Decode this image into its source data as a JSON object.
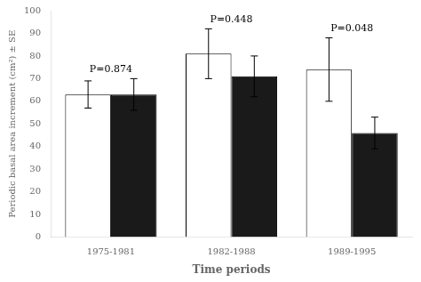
{
  "chart_data": {
    "type": "bar",
    "categories": [
      "1975-1981",
      "1982-1988",
      "1989-1995"
    ],
    "series": [
      {
        "color": "#ffffff",
        "values": [
          63,
          81,
          74
        ],
        "errors": [
          6,
          11,
          14
        ]
      },
      {
        "color": "#1a1a1a",
        "values": [
          63,
          71,
          46
        ],
        "errors": [
          7,
          9,
          7
        ]
      }
    ],
    "annotations": [
      {
        "text": "P=0.874",
        "category": "1975-1981"
      },
      {
        "text": "P=0.448",
        "category": "1982-1988"
      },
      {
        "text": "P=0.048",
        "category": "1989-1995"
      }
    ],
    "ylabel": "Periodic basal area increment (cm²) ± SE",
    "xlabel": "Time periods",
    "ylim": [
      0,
      100
    ],
    "yticks": [
      0,
      10,
      20,
      30,
      40,
      50,
      60,
      70,
      80,
      90,
      100
    ],
    "grid": false,
    "legend": false
  }
}
